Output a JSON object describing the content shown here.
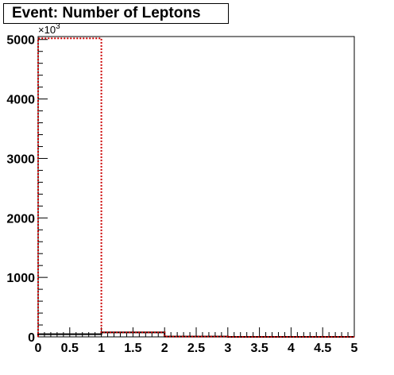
{
  "title": "Event: Number of Leptons",
  "colors": {
    "axis": "#000000",
    "series_black": "#000000",
    "series_red": "#cc0000"
  },
  "chart_data": {
    "type": "histogram",
    "title": "Event: Number of Leptons",
    "xlabel": "",
    "ylabel": "",
    "xlim": [
      0,
      5
    ],
    "ylim": [
      0,
      5050
    ],
    "y_multiplier_label": "×10",
    "y_multiplier_exponent": "3",
    "x_ticks": [
      "0",
      "0.5",
      "1",
      "1.5",
      "2",
      "2.5",
      "3",
      "3.5",
      "4",
      "4.5",
      "5"
    ],
    "y_ticks": [
      "0",
      "1000",
      "2000",
      "3000",
      "4000",
      "5000"
    ],
    "bins": [
      0,
      1,
      2,
      3,
      4,
      5
    ],
    "series": [
      {
        "style": "solid",
        "color": "#000000",
        "values": [
          45,
          75,
          5,
          0,
          0
        ]
      },
      {
        "style": "dotted",
        "color": "#cc0000",
        "values": [
          5020,
          75,
          5,
          0,
          0
        ]
      }
    ]
  }
}
